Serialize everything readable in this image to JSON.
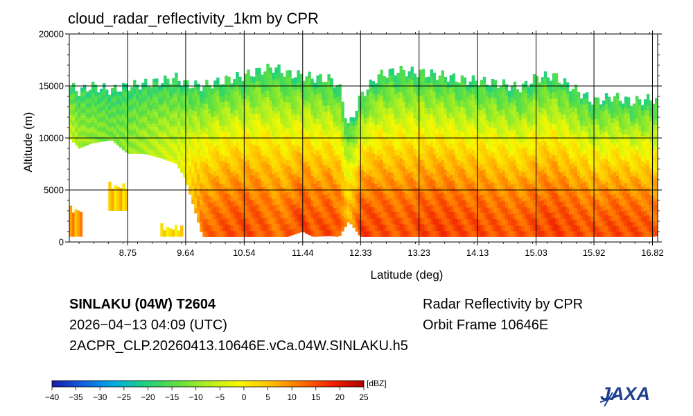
{
  "chart_data": {
    "type": "heatmap",
    "title": "cloud_radar_reflectivity_1km by CPR",
    "xlabel": "Latitude (deg)",
    "ylabel": "Altitude (m)",
    "xlim": [
      7.85,
      16.9
    ],
    "ylim": [
      0,
      20000
    ],
    "x_ticks": [
      "8.75",
      "9.64",
      "10.54",
      "11.44",
      "12.33",
      "13.23",
      "14.13",
      "15.03",
      "15.92",
      "16.82"
    ],
    "y_ticks": [
      "0",
      "5000",
      "10000",
      "15000",
      "20000"
    ],
    "grid": true,
    "colorbar": {
      "unit": "[dBZ]",
      "min": -40,
      "max": 25,
      "ticks": [
        "−40",
        "−35",
        "−30",
        "−25",
        "−20",
        "−15",
        "−10",
        "−5",
        "0",
        "5",
        "10",
        "15",
        "20",
        "25"
      ],
      "colors": [
        "#1a1aa8",
        "#1060e0",
        "#00aee0",
        "#20d080",
        "#60e040",
        "#b0f020",
        "#f8f800",
        "#ffc000",
        "#ff7000",
        "#f02000",
        "#b00000"
      ]
    },
    "cloud_profile": {
      "lat": [
        7.85,
        8.0,
        8.2,
        8.5,
        8.75,
        9.0,
        9.3,
        9.5,
        9.64,
        9.9,
        10.2,
        10.54,
        10.8,
        11.0,
        11.2,
        11.44,
        11.6,
        11.85,
        12.0,
        12.15,
        12.33,
        12.6,
        12.9,
        13.23,
        13.6,
        13.9,
        14.13,
        14.5,
        14.8,
        15.03,
        15.3,
        15.6,
        15.92,
        16.2,
        16.5,
        16.82,
        16.9
      ],
      "top_m": [
        15000,
        14500,
        15000,
        14600,
        15000,
        15200,
        15500,
        15800,
        15200,
        15000,
        15500,
        16000,
        16500,
        16800,
        16200,
        16000,
        15800,
        15700,
        15000,
        11000,
        14000,
        16000,
        16500,
        16300,
        16000,
        15600,
        15500,
        15200,
        14800,
        15800,
        16000,
        14800,
        13500,
        14000,
        13500,
        13800,
        13500
      ],
      "base_m": [
        10000,
        9000,
        9500,
        9800,
        8500,
        8500,
        8000,
        7500,
        6000,
        500,
        500,
        500,
        500,
        500,
        500,
        1000,
        500,
        600,
        500,
        2000,
        500,
        500,
        500,
        500,
        500,
        500,
        500,
        500,
        500,
        500,
        500,
        500,
        500,
        500,
        500,
        500,
        600
      ],
      "max_dbz": [
        -5,
        -8,
        -10,
        -12,
        -10,
        -8,
        -5,
        -4,
        0,
        12,
        14,
        15,
        14,
        12,
        13,
        16,
        14,
        15,
        14,
        5,
        16,
        15,
        14,
        15,
        16,
        15,
        15,
        14,
        14,
        15,
        16,
        15,
        14,
        15,
        15,
        14,
        13
      ]
    },
    "low_clouds": [
      {
        "lat0": 7.85,
        "lat1": 8.05,
        "top_m": 3500,
        "base_m": 500,
        "dbz": 8
      },
      {
        "lat0": 8.45,
        "lat1": 8.75,
        "top_m": 5800,
        "base_m": 3000,
        "dbz": 4
      },
      {
        "lat0": 9.25,
        "lat1": 9.6,
        "top_m": 1800,
        "base_m": 500,
        "dbz": 2
      }
    ]
  },
  "info": {
    "storm": "SINLAKU (04W) T2604",
    "datetime": "2026−04−13 04:09 (UTC)",
    "filename": "2ACPR_CLP.20260413.10646E.vCa.04W.SINLAKU.h5",
    "product": "Radar Reflectivity by CPR",
    "orbit": "Orbit Frame 10646E"
  },
  "logo": {
    "text": "JAXA",
    "color": "#1f3f8f"
  }
}
